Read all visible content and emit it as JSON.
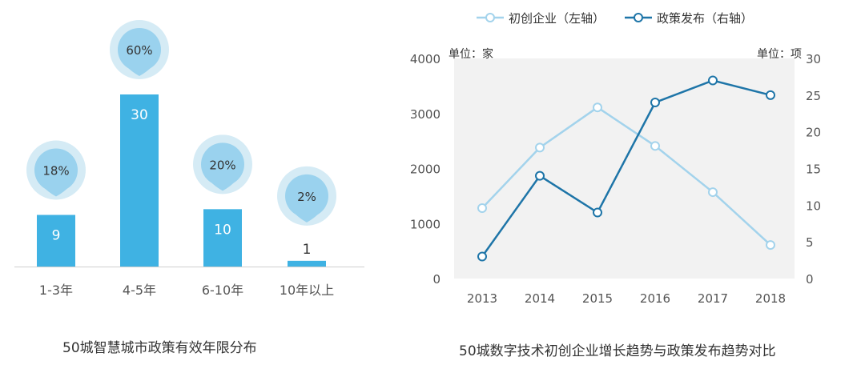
{
  "colors": {
    "bar": "#3fb2e3",
    "bubble_outer": "#d5ebf5",
    "bubble_inner": "#9ad2ee",
    "axis": "#cfcfcf",
    "plot_bg": "#f2f2f2",
    "line_startups": "#a3d3ec",
    "line_policy": "#1e75a8"
  },
  "chart_data": [
    {
      "type": "bar",
      "title": "50城智慧城市政策有效年限分布",
      "categories": [
        "1-3年",
        "4-5年",
        "6-10年",
        "10年以上"
      ],
      "values": [
        9,
        30,
        10,
        1
      ],
      "percent_labels": [
        "18%",
        "60%",
        "20%",
        "2%"
      ],
      "ylim": [
        0,
        30
      ],
      "grid": false,
      "legend": "none"
    },
    {
      "type": "line",
      "title": "50城数字技术初创企业增长趋势与政策发布趋势对比",
      "x": [
        "2013",
        "2014",
        "2015",
        "2016",
        "2017",
        "2018"
      ],
      "y_left": {
        "unit_label": "单位：家",
        "ylim": [
          0,
          4000
        ],
        "ticks": [
          "0",
          "1000",
          "2000",
          "3000",
          "4000"
        ]
      },
      "y_right": {
        "unit_label": "单位：项",
        "ylim": [
          0,
          30
        ],
        "ticks": [
          "0",
          "5",
          "10",
          "15",
          "20",
          "25",
          "30"
        ]
      },
      "series": [
        {
          "name": "初创企业（左轴）",
          "axis": "left",
          "values": [
            1280,
            2380,
            3110,
            2410,
            1570,
            610
          ]
        },
        {
          "name": "政策发布（右轴）",
          "axis": "right",
          "values": [
            3,
            14,
            9,
            24,
            27,
            25
          ]
        }
      ],
      "grid": false,
      "legend": "top"
    }
  ]
}
